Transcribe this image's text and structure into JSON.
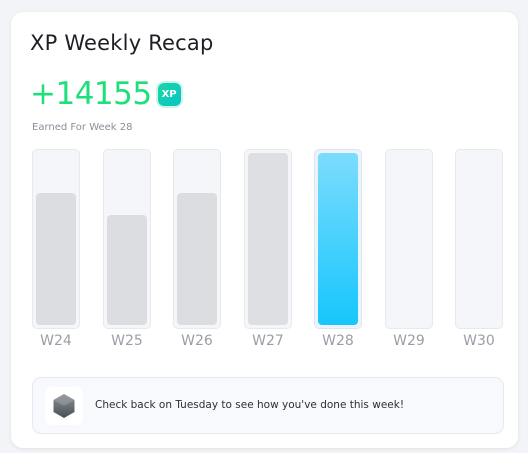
{
  "card": {
    "title": "XP Weekly Recap",
    "xp_amount": "+14155",
    "xp_badge": "XP",
    "caption": "Earned For Week 28"
  },
  "weeks": [
    {
      "label": "W24",
      "level": 0.77,
      "current": false
    },
    {
      "label": "W25",
      "level": 0.64,
      "current": false
    },
    {
      "label": "W26",
      "level": 0.77,
      "current": false
    },
    {
      "label": "W27",
      "level": 1.0,
      "current": false
    },
    {
      "label": "W28",
      "level": 1.0,
      "current": true
    },
    {
      "label": "W29",
      "level": 0,
      "current": false
    },
    {
      "label": "W30",
      "level": 0,
      "current": false
    }
  ],
  "notice": {
    "icon": "hexagon-icon",
    "text": "Check back on Tuesday to see how you've done this week!"
  },
  "colors": {
    "xp_green": "#1edf7a",
    "current_bar": "#16c6fb",
    "past_bar": "#dcdde1"
  }
}
